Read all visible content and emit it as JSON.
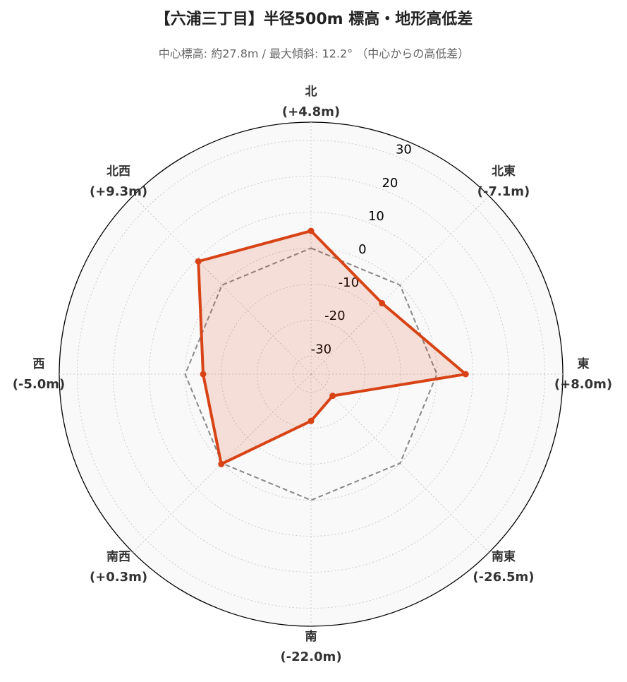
{
  "chart_data": {
    "type": "radar",
    "title": "【六浦三丁目】半径500m 標高・地形高低差",
    "subtitle": "中心標高: 約27.8m / 最大傾斜: 12.2° （中心からの高低差）",
    "categories": [
      "北",
      "北東",
      "東",
      "南東",
      "南",
      "南西",
      "西",
      "北西"
    ],
    "series": [
      {
        "color": "#d84315",
        "values": [
          4.8,
          -7.1,
          8.0,
          -26.5,
          -22.0,
          0.3,
          -5.0,
          9.3
        ],
        "value_labels": [
          "(+4.8m)",
          "(-7.1m)",
          "(+8.0m)",
          "(-26.5m)",
          "(-22.0m)",
          "(+0.3m)",
          "(-5.0m)",
          "(+9.3m)"
        ]
      }
    ],
    "reference_value": 0,
    "ylim": [
      -35,
      35
    ],
    "yticks": [
      -30,
      -20,
      -10,
      0,
      10,
      20,
      30
    ],
    "grid": true
  }
}
